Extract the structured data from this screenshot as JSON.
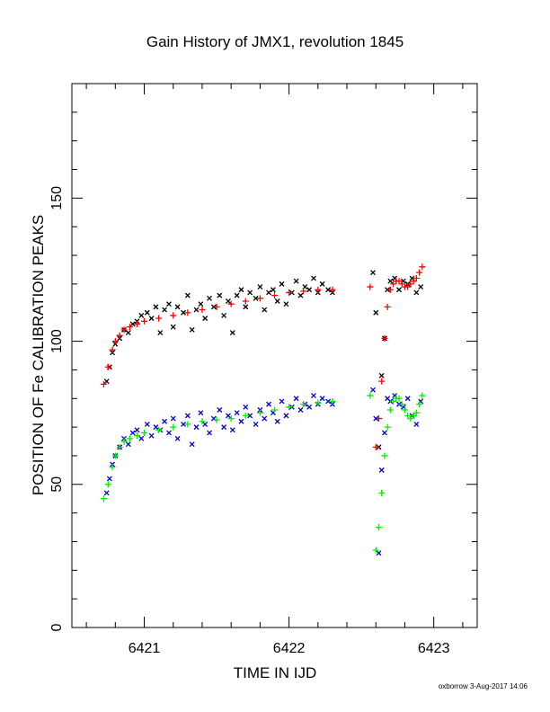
{
  "chart_data": {
    "type": "scatter",
    "title": "Gain History of JMX1, revolution 1845",
    "xlabel": "TIME IN IJD",
    "ylabel": "POSITION OF Fe CALIBRATION PEAKS",
    "xlim": [
      6420.5,
      6423.3
    ],
    "ylim": [
      0,
      190
    ],
    "x_ticks": [
      6421,
      6422,
      6423
    ],
    "y_ticks": [
      0,
      50,
      100,
      150
    ],
    "grid": false,
    "footer": "oxborrow  3-Aug-2017 14:06",
    "series": [
      {
        "color": "#000000",
        "marker": "x",
        "x": [
          6420.74,
          6420.76,
          6420.78,
          6420.8,
          6420.83,
          6420.86,
          6420.89,
          6420.92,
          6420.95,
          6420.98,
          6421.02,
          6421.05,
          6421.08,
          6421.11,
          6421.14,
          6421.17,
          6421.2,
          6421.23,
          6421.27,
          6421.3,
          6421.33,
          6421.36,
          6421.39,
          6421.42,
          6421.45,
          6421.48,
          6421.52,
          6421.55,
          6421.58,
          6421.61,
          6421.64,
          6421.67,
          6421.7,
          6421.73,
          6421.77,
          6421.8,
          6421.83,
          6421.86,
          6421.89,
          6421.92,
          6421.95,
          6421.98,
          6422.02,
          6422.05,
          6422.08,
          6422.11,
          6422.14,
          6422.17,
          6422.2,
          6422.23,
          6422.27,
          6422.3,
          6422.58,
          6422.6,
          6422.62,
          6422.64,
          6422.66,
          6422.68,
          6422.7,
          6422.73,
          6422.76,
          6422.79,
          6422.82,
          6422.85,
          6422.88,
          6422.91
        ],
        "y": [
          86,
          91,
          96,
          99,
          101,
          104,
          103,
          106,
          107,
          109,
          110,
          108,
          112,
          103,
          111,
          113,
          105,
          112,
          110,
          116,
          104,
          111,
          113,
          108,
          115,
          112,
          116,
          109,
          114,
          103,
          116,
          118,
          112,
          117,
          115,
          119,
          111,
          117,
          118,
          114,
          120,
          113,
          117,
          121,
          116,
          119,
          118,
          122,
          117,
          120,
          118,
          117,
          124,
          110,
          63,
          88,
          101,
          118,
          121,
          122,
          118,
          121,
          120,
          122,
          117,
          119
        ]
      },
      {
        "color": "#ff0000",
        "marker": "+",
        "x": [
          6420.72,
          6420.75,
          6420.78,
          6420.8,
          6420.83,
          6420.86,
          6420.9,
          6420.95,
          6421.0,
          6421.1,
          6421.2,
          6421.3,
          6421.4,
          6421.5,
          6421.6,
          6421.7,
          6421.8,
          6421.9,
          6422.0,
          6422.1,
          6422.2,
          6422.3,
          6422.56,
          6422.6,
          6422.62,
          6422.64,
          6422.66,
          6422.68,
          6422.7,
          6422.72,
          6422.74,
          6422.76,
          6422.78,
          6422.8,
          6422.82,
          6422.84,
          6422.86,
          6422.88,
          6422.9,
          6422.92
        ],
        "y": [
          85,
          91,
          97,
          100,
          102,
          104,
          105,
          106,
          107,
          108,
          109,
          110,
          111,
          112,
          113,
          114,
          115,
          116,
          117,
          117.5,
          118,
          118,
          119,
          63,
          73,
          86,
          101,
          112,
          118,
          120,
          121,
          121,
          120,
          119,
          119,
          120,
          121,
          122,
          124,
          126
        ]
      },
      {
        "color": "#0000cc",
        "marker": "x",
        "x": [
          6420.74,
          6420.76,
          6420.78,
          6420.8,
          6420.83,
          6420.86,
          6420.89,
          6420.92,
          6420.95,
          6420.98,
          6421.02,
          6421.05,
          6421.08,
          6421.11,
          6421.14,
          6421.17,
          6421.2,
          6421.23,
          6421.27,
          6421.3,
          6421.33,
          6421.36,
          6421.39,
          6421.42,
          6421.45,
          6421.48,
          6421.52,
          6421.55,
          6421.58,
          6421.61,
          6421.64,
          6421.67,
          6421.7,
          6421.73,
          6421.77,
          6421.8,
          6421.83,
          6421.86,
          6421.89,
          6421.92,
          6421.95,
          6421.98,
          6422.02,
          6422.05,
          6422.08,
          6422.11,
          6422.14,
          6422.17,
          6422.2,
          6422.23,
          6422.27,
          6422.3,
          6422.58,
          6422.6,
          6422.62,
          6422.64,
          6422.66,
          6422.68,
          6422.7,
          6422.73,
          6422.76,
          6422.79,
          6422.82,
          6422.85,
          6422.88,
          6422.91
        ],
        "y": [
          47,
          52,
          57,
          60,
          63,
          66,
          64,
          68,
          69,
          66,
          71,
          67,
          70,
          69,
          72,
          68,
          73,
          66,
          71,
          74,
          64,
          70,
          75,
          71,
          68,
          73,
          76,
          70,
          74,
          69,
          75,
          72,
          77,
          74,
          71,
          76,
          73,
          78,
          75,
          72,
          79,
          74,
          77,
          80,
          76,
          78,
          77,
          81,
          78,
          80,
          79,
          78,
          83,
          73,
          26,
          55,
          68,
          80,
          79,
          81,
          78,
          77,
          80,
          74,
          71,
          79
        ]
      },
      {
        "color": "#00ee00",
        "marker": "+",
        "x": [
          6420.72,
          6420.75,
          6420.78,
          6420.8,
          6420.83,
          6420.86,
          6420.9,
          6420.95,
          6421.0,
          6421.1,
          6421.2,
          6421.3,
          6421.4,
          6421.5,
          6421.6,
          6421.7,
          6421.8,
          6421.9,
          6422.0,
          6422.1,
          6422.2,
          6422.3,
          6422.56,
          6422.6,
          6422.62,
          6422.64,
          6422.66,
          6422.68,
          6422.7,
          6422.72,
          6422.74,
          6422.76,
          6422.78,
          6422.8,
          6422.82,
          6422.84,
          6422.86,
          6422.88,
          6422.9,
          6422.92
        ],
        "y": [
          45,
          50,
          56,
          60,
          63,
          65,
          66,
          67,
          68,
          69,
          70,
          71,
          72,
          72.5,
          73,
          74,
          75,
          76,
          77,
          78,
          78.5,
          79,
          81,
          27,
          35,
          47,
          60,
          70,
          76,
          79,
          80,
          80,
          78,
          76,
          74,
          73,
          74,
          75,
          78,
          81
        ]
      }
    ]
  }
}
